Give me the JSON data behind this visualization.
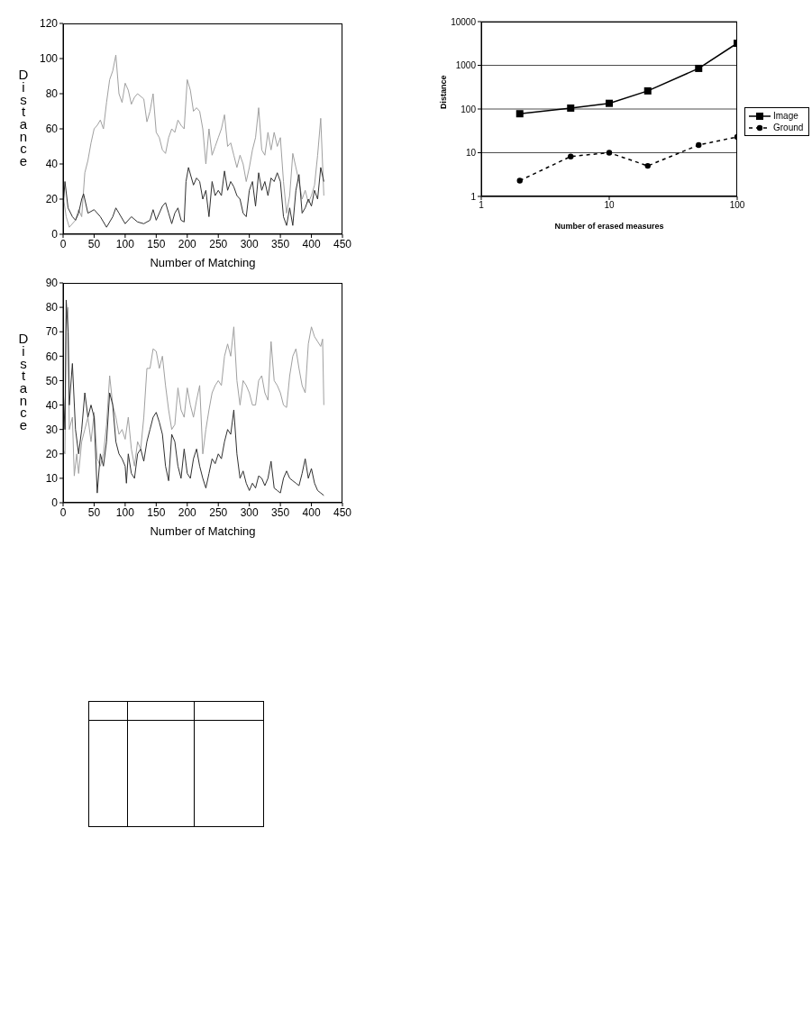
{
  "chart_data": [
    {
      "type": "line",
      "xlabel": "Number of Matching",
      "ylabel": "Distance",
      "xlim": [
        0,
        450
      ],
      "xticks": [
        0,
        50,
        100,
        150,
        200,
        250,
        300,
        350,
        400,
        450
      ],
      "ylim": [
        0,
        120
      ],
      "yticks": [
        0,
        20,
        40,
        60,
        80,
        100,
        120
      ],
      "grid": false,
      "legend": false,
      "marker": "none",
      "series": [
        {
          "color": "#a0a0a0",
          "x": [
            0,
            5,
            10,
            20,
            25,
            30,
            35,
            40,
            45,
            50,
            55,
            60,
            65,
            70,
            75,
            80,
            85,
            90,
            95,
            100,
            105,
            110,
            115,
            120,
            130,
            135,
            140,
            145,
            150,
            155,
            160,
            165,
            170,
            175,
            180,
            185,
            190,
            195,
            200,
            205,
            210,
            215,
            220,
            225,
            230,
            235,
            240,
            245,
            250,
            255,
            260,
            265,
            270,
            275,
            280,
            285,
            290,
            295,
            300,
            305,
            310,
            315,
            320,
            325,
            330,
            335,
            340,
            345,
            350,
            355,
            360,
            365,
            370,
            375,
            380,
            385,
            390,
            395,
            400,
            405,
            410,
            415,
            420
          ],
          "values": [
            22,
            10,
            4,
            8,
            14,
            10,
            35,
            42,
            52,
            60,
            62,
            65,
            60,
            75,
            88,
            93,
            102,
            80,
            75,
            86,
            82,
            74,
            78,
            80,
            77,
            64,
            70,
            80,
            58,
            55,
            48,
            46,
            55,
            60,
            58,
            65,
            62,
            60,
            88,
            82,
            70,
            72,
            70,
            60,
            40,
            60,
            45,
            50,
            55,
            60,
            68,
            50,
            52,
            45,
            38,
            45,
            40,
            30,
            38,
            48,
            55,
            72,
            48,
            45,
            58,
            48,
            58,
            50,
            55,
            30,
            12,
            22,
            46,
            38,
            30,
            20,
            25,
            18,
            22,
            28,
            45,
            66,
            22
          ]
        },
        {
          "color": "#303030",
          "x": [
            0,
            3,
            8,
            15,
            20,
            25,
            30,
            33,
            40,
            50,
            60,
            70,
            80,
            85,
            90,
            100,
            110,
            120,
            130,
            140,
            145,
            150,
            160,
            165,
            170,
            175,
            180,
            185,
            190,
            195,
            198,
            202,
            210,
            215,
            220,
            225,
            230,
            235,
            240,
            245,
            250,
            255,
            260,
            265,
            270,
            275,
            280,
            285,
            290,
            295,
            300,
            305,
            310,
            315,
            320,
            325,
            330,
            335,
            340,
            345,
            350,
            355,
            360,
            365,
            370,
            375,
            380,
            385,
            390,
            395,
            400,
            405,
            410,
            415,
            420
          ],
          "values": [
            15,
            30,
            15,
            10,
            8,
            12,
            20,
            23,
            12,
            14,
            10,
            4,
            10,
            15,
            12,
            6,
            10,
            7,
            6,
            8,
            14,
            8,
            16,
            18,
            12,
            6,
            12,
            15,
            8,
            7,
            30,
            38,
            28,
            32,
            30,
            20,
            25,
            10,
            30,
            22,
            25,
            22,
            36,
            25,
            30,
            27,
            22,
            20,
            12,
            10,
            25,
            30,
            16,
            35,
            25,
            30,
            22,
            32,
            30,
            35,
            30,
            10,
            5,
            15,
            5,
            25,
            34,
            12,
            15,
            20,
            16,
            25,
            20,
            38,
            30
          ]
        }
      ]
    },
    {
      "type": "line",
      "xlabel": "Number of Matching",
      "ylabel": "Distance",
      "xlim": [
        0,
        450
      ],
      "xticks": [
        0,
        50,
        100,
        150,
        200,
        250,
        300,
        350,
        400,
        450
      ],
      "ylim": [
        0,
        90
      ],
      "yticks": [
        0,
        10,
        20,
        30,
        40,
        50,
        60,
        70,
        80,
        90
      ],
      "grid": false,
      "legend": false,
      "marker": "none",
      "series": [
        {
          "color": "#a0a0a0",
          "x": [
            0,
            3,
            5,
            8,
            10,
            15,
            18,
            22,
            25,
            30,
            35,
            40,
            45,
            50,
            55,
            60,
            65,
            70,
            75,
            80,
            85,
            90,
            95,
            100,
            105,
            110,
            115,
            120,
            125,
            130,
            135,
            140,
            145,
            150,
            155,
            160,
            165,
            170,
            175,
            180,
            185,
            190,
            195,
            200,
            205,
            210,
            215,
            220,
            225,
            230,
            235,
            240,
            245,
            250,
            255,
            260,
            265,
            270,
            275,
            280,
            285,
            290,
            295,
            300,
            305,
            310,
            315,
            320,
            325,
            330,
            335,
            340,
            345,
            350,
            355,
            360,
            365,
            370,
            375,
            380,
            385,
            390,
            395,
            400,
            405,
            410,
            415,
            418,
            420
          ],
          "values": [
            22,
            20,
            75,
            80,
            30,
            35,
            11,
            20,
            12,
            25,
            30,
            35,
            25,
            37,
            18,
            15,
            20,
            32,
            52,
            40,
            35,
            28,
            30,
            26,
            35,
            22,
            15,
            25,
            22,
            35,
            55,
            55,
            63,
            62,
            55,
            60,
            48,
            38,
            30,
            32,
            47,
            38,
            35,
            47,
            40,
            35,
            42,
            48,
            20,
            30,
            38,
            45,
            48,
            50,
            48,
            60,
            65,
            60,
            72,
            50,
            40,
            50,
            48,
            45,
            40,
            40,
            50,
            52,
            45,
            42,
            66,
            50,
            48,
            45,
            40,
            39,
            52,
            60,
            63,
            55,
            48,
            45,
            65,
            72,
            68,
            66,
            64,
            67,
            40
          ]
        },
        {
          "color": "#303030",
          "x": [
            0,
            3,
            5,
            8,
            10,
            15,
            20,
            25,
            30,
            35,
            40,
            45,
            50,
            55,
            60,
            65,
            70,
            75,
            80,
            85,
            90,
            95,
            100,
            102,
            105,
            110,
            115,
            120,
            125,
            130,
            135,
            140,
            145,
            150,
            155,
            160,
            165,
            170,
            175,
            180,
            185,
            190,
            195,
            200,
            205,
            210,
            215,
            220,
            225,
            230,
            235,
            240,
            245,
            250,
            255,
            260,
            265,
            270,
            275,
            280,
            285,
            290,
            295,
            300,
            305,
            310,
            315,
            320,
            325,
            330,
            335,
            340,
            345,
            350,
            355,
            360,
            365,
            370,
            375,
            380,
            385,
            390,
            395,
            400,
            405,
            410,
            415,
            420
          ],
          "values": [
            48,
            30,
            83,
            70,
            40,
            57,
            30,
            20,
            30,
            45,
            35,
            40,
            35,
            4,
            20,
            15,
            25,
            45,
            40,
            25,
            20,
            18,
            15,
            8,
            20,
            12,
            10,
            20,
            22,
            17,
            25,
            30,
            35,
            37,
            33,
            28,
            15,
            9,
            28,
            25,
            15,
            10,
            22,
            12,
            10,
            18,
            22,
            15,
            10,
            6,
            12,
            18,
            16,
            20,
            18,
            25,
            30,
            28,
            38,
            20,
            10,
            13,
            8,
            5,
            8,
            6,
            11,
            10,
            7,
            10,
            17,
            6,
            5,
            4,
            10,
            13,
            10,
            9,
            8,
            7,
            12,
            18,
            10,
            14,
            8,
            5,
            4,
            3
          ]
        }
      ]
    },
    {
      "type": "line",
      "xlabel": "Number of erased measures",
      "ylabel": "Distance",
      "log": "xy",
      "xlim": [
        1,
        100
      ],
      "xticks": [
        1,
        10,
        100
      ],
      "ylim": [
        1,
        10000
      ],
      "yticks": [
        1,
        10,
        100,
        1000,
        10000
      ],
      "grid": "y",
      "legend": "right",
      "x": [
        2,
        5,
        10,
        20,
        50,
        100
      ],
      "series": [
        {
          "name": "Image",
          "color": "#000000",
          "marker": "square",
          "line_style": "solid",
          "values": [
            78,
            105,
            135,
            260,
            850,
            3200
          ]
        },
        {
          "name": "Ground",
          "color": "#000000",
          "marker": "circle",
          "line_style": "dashed",
          "values": [
            2.3,
            8.2,
            10,
            5,
            15,
            23
          ]
        }
      ]
    }
  ]
}
